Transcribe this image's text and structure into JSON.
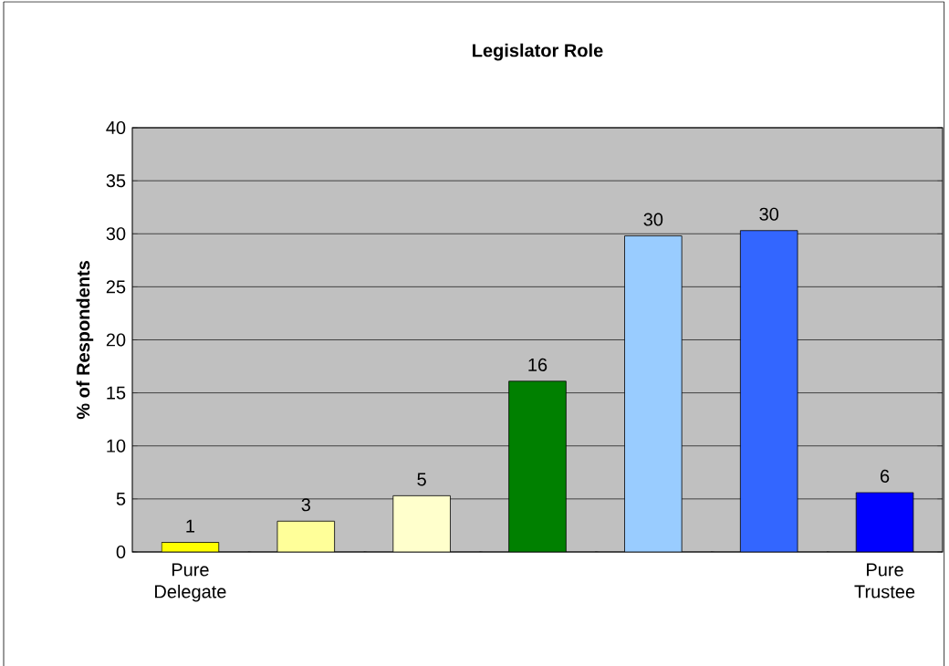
{
  "chart_data": {
    "type": "bar",
    "title": "Legislator Role",
    "ylabel": "% of Respondents",
    "categories": [
      "Pure Delegate",
      null,
      null,
      null,
      null,
      null,
      "Pure Trustee"
    ],
    "values": [
      0.9,
      2.9,
      5.3,
      16.1,
      29.8,
      30.3,
      5.6
    ],
    "value_labels": [
      "1",
      "3",
      "5",
      "16",
      "30",
      "30",
      "6"
    ],
    "colors": [
      "#ffff00",
      "#ffff99",
      "#ffffcc",
      "#008000",
      "#99ccff",
      "#3366ff",
      "#0000ff"
    ],
    "ylim": [
      0,
      40
    ],
    "yticks": [
      0,
      5,
      10,
      15,
      20,
      25,
      30,
      35,
      40
    ],
    "grid": "y"
  }
}
